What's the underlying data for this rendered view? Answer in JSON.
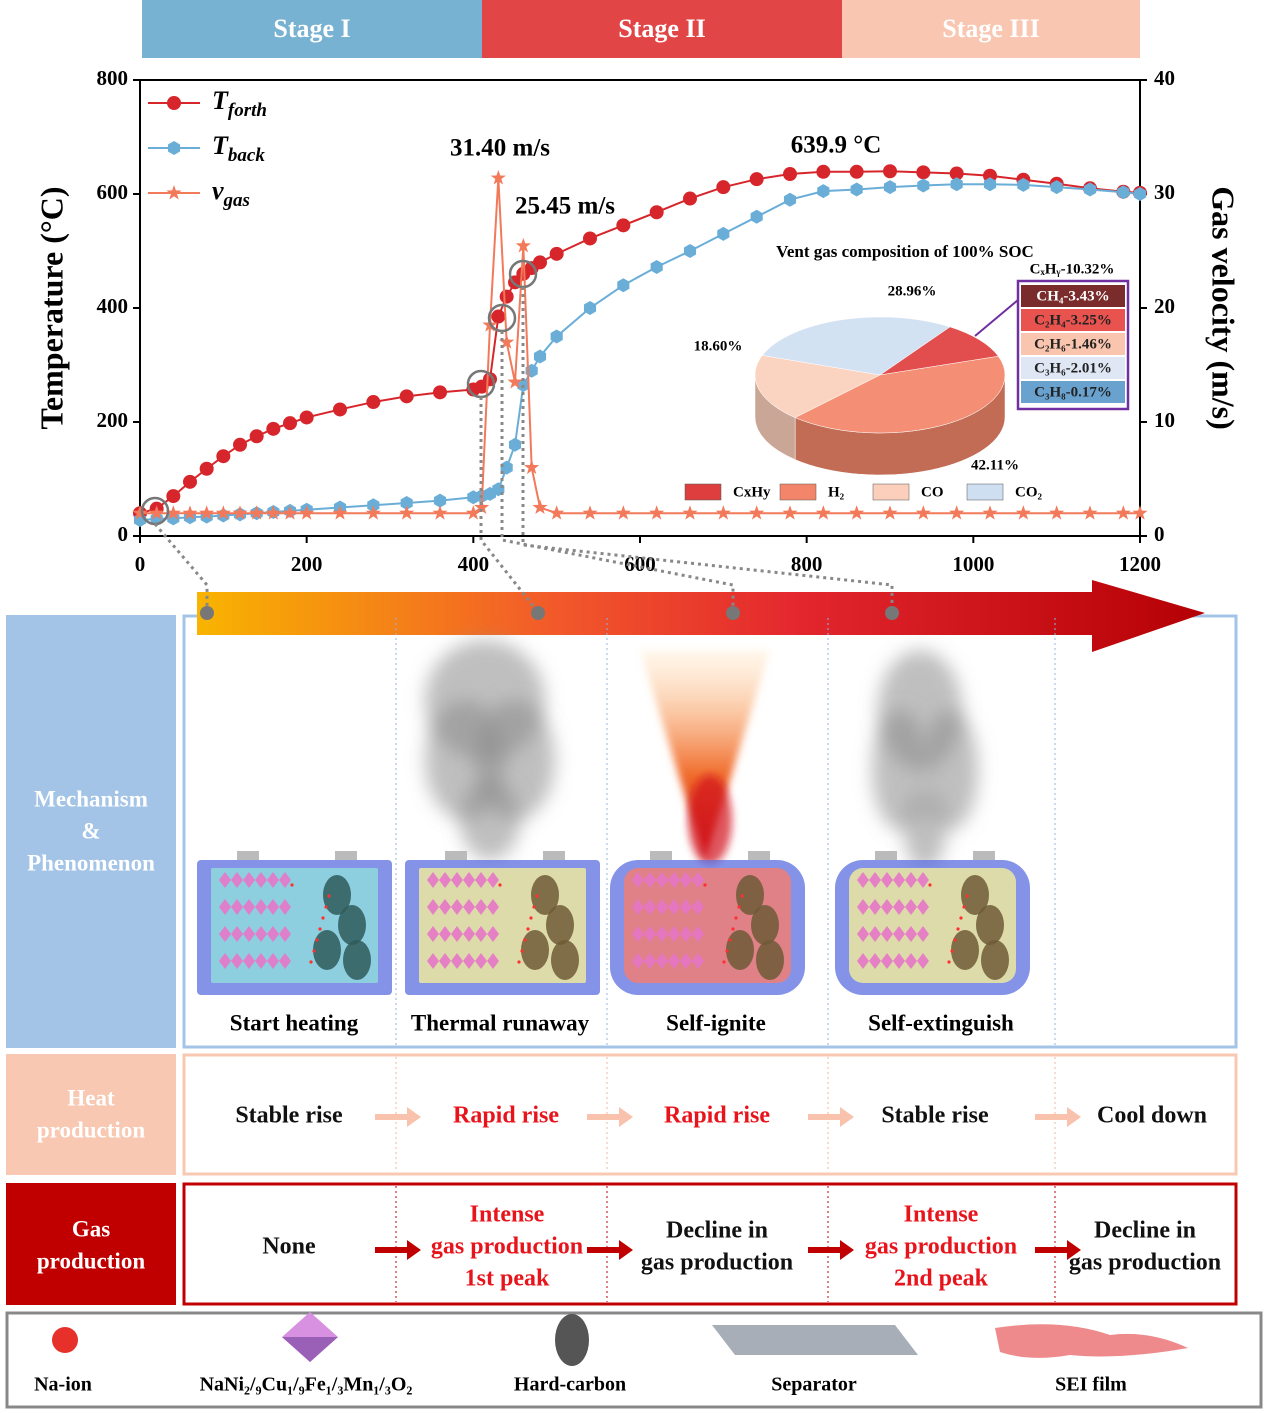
{
  "stages": [
    {
      "label": "Stage I",
      "color": "#78b2d2"
    },
    {
      "label": "Stage II",
      "color": "#e24546"
    },
    {
      "label": "Stage III",
      "color": "#f9c7b1"
    }
  ],
  "chart_data": [
    {
      "type": "line",
      "ylabel": "Temperature (°C)",
      "y2label": "Gas velocity (m/s)",
      "x": [
        0,
        20,
        40,
        60,
        80,
        100,
        120,
        140,
        160,
        180,
        200,
        240,
        280,
        320,
        360,
        400,
        410,
        420,
        430,
        440,
        450,
        460,
        470,
        480,
        500,
        540,
        580,
        620,
        660,
        700,
        740,
        780,
        820,
        860,
        900,
        940,
        980,
        1020,
        1060,
        1100,
        1140,
        1180,
        1200
      ],
      "xlim": [
        0,
        1200
      ],
      "xticks": [
        0,
        200,
        400,
        600,
        800,
        1000,
        1200
      ],
      "ylim": [
        0,
        800
      ],
      "yticks": [
        0,
        200,
        400,
        600,
        800
      ],
      "y2lim": [
        0,
        40
      ],
      "y2ticks": [
        0,
        10,
        20,
        30,
        40
      ],
      "series": [
        {
          "name": "T",
          "name_sub": "forth",
          "color": "#d7262b",
          "marker": "circle",
          "values": [
            40,
            48,
            70,
            95,
            118,
            140,
            160,
            175,
            188,
            198,
            208,
            222,
            235,
            245,
            252,
            257,
            262,
            275,
            385,
            420,
            445,
            460,
            470,
            480,
            495,
            522,
            545,
            568,
            592,
            612,
            626,
            635,
            639,
            639,
            639.9,
            638,
            636,
            632,
            625,
            618,
            610,
            604,
            602
          ]
        },
        {
          "name": "T",
          "name_sub": "back",
          "color": "#6aaed8",
          "marker": "hexagon",
          "values": [
            28,
            30,
            31,
            33,
            34,
            36,
            38,
            40,
            42,
            44,
            46,
            50,
            54,
            58,
            62,
            68,
            70,
            74,
            82,
            120,
            160,
            265,
            290,
            315,
            350,
            400,
            440,
            472,
            500,
            530,
            560,
            590,
            605,
            608,
            612,
            615,
            617,
            617,
            616,
            612,
            608,
            603,
            600
          ]
        },
        {
          "name": "v",
          "name_sub": "gas",
          "color": "#f2795a",
          "marker": "star",
          "axis": "y2",
          "values": [
            2,
            2,
            2,
            2,
            2,
            2,
            2,
            2,
            2,
            2,
            2,
            2,
            2,
            2,
            2,
            2,
            2.5,
            18.5,
            31.4,
            17,
            13.5,
            25.45,
            6,
            2.5,
            2,
            2,
            2,
            2,
            2,
            2,
            2,
            2,
            2,
            2,
            2,
            2,
            2,
            2,
            2,
            2,
            2,
            2,
            2
          ]
        }
      ],
      "annotations": [
        "31.40 m/s",
        "25.45 m/s",
        "639.9 °C"
      ]
    },
    {
      "type": "pie",
      "title": "Vent gas composition of 100% SOC",
      "categories": [
        "CxHy",
        "H₂",
        "CO",
        "CO₂"
      ],
      "values": [
        10.32,
        42.11,
        18.6,
        28.96
      ],
      "value_labels": [
        "CₓHᵧ-10.32%",
        "42.11%",
        "18.60%",
        "28.96%"
      ],
      "colors": [
        "#de3f3e",
        "#f3866a",
        "#fbcfbc",
        "#cfdff2"
      ],
      "breakdown": {
        "categories": [
          "CH₄",
          "C₂H₄",
          "C₂H₆",
          "C₃H₆",
          "C₃H₈"
        ],
        "values": [
          3.43,
          3.25,
          1.46,
          2.01,
          0.17
        ],
        "value_labels": [
          "CH₄-3.43%",
          "C₂H₄-3.25%",
          "C₂H₆-1.46%",
          "C₃H₆-2.01%",
          "C₃H₈-0.17%"
        ],
        "colors": [
          "#7a2b2b",
          "#e8534f",
          "#f9c5ae",
          "#dfe7f5",
          "#6aa2cf"
        ]
      }
    }
  ],
  "mechanism": {
    "label": [
      "Mechanism",
      "&",
      "Phenomenon"
    ],
    "captions": [
      "Start heating",
      "Thermal runaway",
      "Self-ignite",
      "Self-extinguish"
    ]
  },
  "heat": {
    "label": [
      "Heat",
      "production"
    ],
    "steps": [
      {
        "text": "Stable rise",
        "color": "#111"
      },
      {
        "text": "Rapid rise",
        "color": "#e8141c"
      },
      {
        "text": "Rapid rise",
        "color": "#e8141c"
      },
      {
        "text": "Stable rise",
        "color": "#111"
      },
      {
        "text": "Cool down",
        "color": "#111"
      }
    ]
  },
  "gas": {
    "label": [
      "Gas",
      "production"
    ],
    "steps": [
      {
        "lines": [
          "None"
        ],
        "color": "#111"
      },
      {
        "lines": [
          "Intense",
          "gas production",
          "1st peak"
        ],
        "color": "#e8141c"
      },
      {
        "lines": [
          "Decline in",
          "gas production"
        ],
        "color": "#111"
      },
      {
        "lines": [
          "Intense",
          "gas production",
          "2nd peak"
        ],
        "color": "#e8141c"
      },
      {
        "lines": [
          "Decline in",
          "gas production"
        ],
        "color": "#111"
      }
    ]
  },
  "legend": [
    "Na-ion",
    "NaNi₂/₉Cu₁/₉Fe₁/₃Mn₁/₃O₂",
    "Hard-carbon",
    "Separator",
    "SEI film"
  ]
}
